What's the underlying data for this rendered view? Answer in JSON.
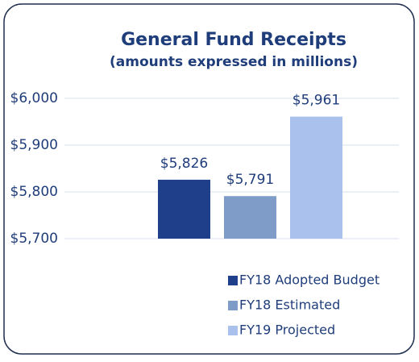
{
  "chart_data": {
    "type": "bar",
    "title": "General Fund Receipts",
    "subtitle": "(amounts expressed in millions)",
    "series": [
      {
        "name": "FY18 Adopted Budget",
        "color": "#1f3f8a",
        "values": [
          5826
        ],
        "value_labels": [
          "$5,826"
        ]
      },
      {
        "name": "FY18 Estimated",
        "color": "#7f9cc8",
        "values": [
          5791
        ],
        "value_labels": [
          "$5,791"
        ]
      },
      {
        "name": "FY19 Projected",
        "color": "#a9c1ec",
        "values": [
          5961
        ],
        "value_labels": [
          "$5,961"
        ]
      }
    ],
    "ylim": [
      5700,
      6000
    ],
    "yticks": [
      {
        "value": 5700,
        "label": "$5,700"
      },
      {
        "value": 5800,
        "label": "$5,800"
      },
      {
        "value": 5900,
        "label": "$5,900"
      },
      {
        "value": 6000,
        "label": "$6,000"
      }
    ],
    "grid": true,
    "legend": "bottom"
  }
}
